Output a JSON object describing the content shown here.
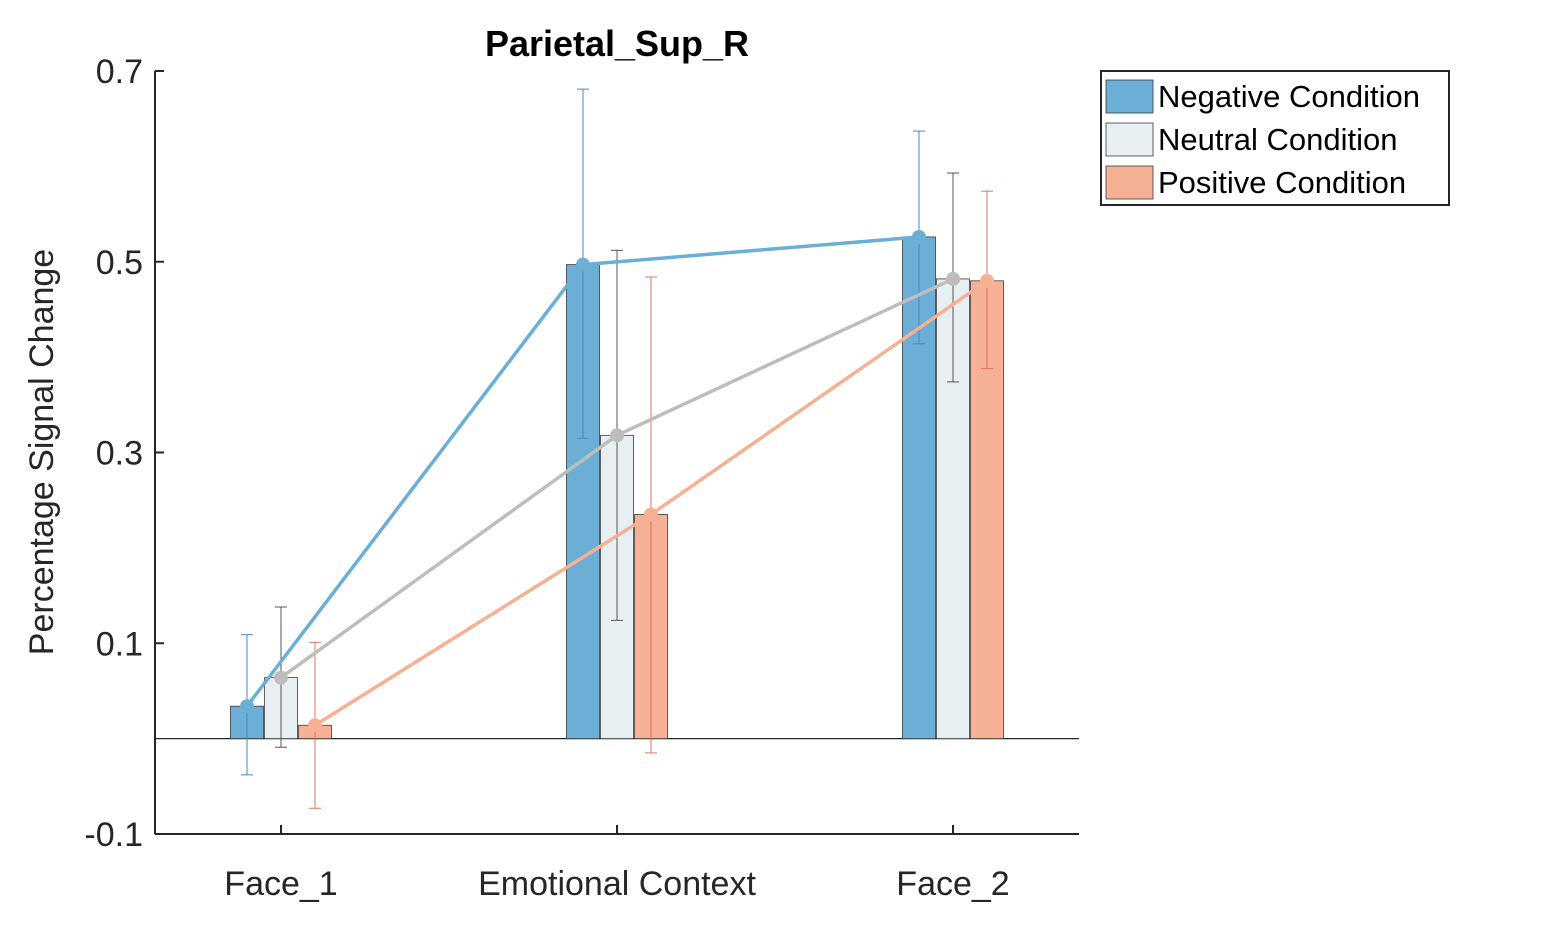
{
  "chart_data": {
    "type": "bar",
    "title": "Parietal_Sup_R",
    "xlabel": "",
    "ylabel": "Percentage Signal Change",
    "categories": [
      "Face_1",
      "Emotional Context",
      "Face_2"
    ],
    "ylim": [
      -0.1,
      0.7
    ],
    "yticks": [
      -0.1,
      0.1,
      0.3,
      0.5,
      0.7
    ],
    "ytick_labels": [
      "-0.1",
      "0.1",
      "0.3",
      "0.5",
      "0.7"
    ],
    "grid": false,
    "legend_position": "outside top-right",
    "overlay": "line connecting bar tops per series",
    "series": [
      {
        "name": "Negative Condition",
        "color": "#6baed6",
        "error_color": "#4a86c5",
        "values": [
          0.034,
          0.497,
          0.526
        ],
        "err_low": [
          -0.038,
          0.315,
          0.414
        ],
        "err_high": [
          0.109,
          0.681,
          0.637
        ]
      },
      {
        "name": "Neutral Condition",
        "color": "#e8eff2",
        "line_color": "#bdbdbd",
        "error_color": "#555555",
        "values": [
          0.064,
          0.318,
          0.482
        ],
        "err_low": [
          -0.009,
          0.124,
          0.374
        ],
        "err_high": [
          0.138,
          0.512,
          0.593
        ]
      },
      {
        "name": "Positive Condition",
        "color": "#f6b093",
        "error_color": "#e07060",
        "values": [
          0.014,
          0.235,
          0.48
        ],
        "err_low": [
          -0.073,
          -0.015,
          0.388
        ],
        "err_high": [
          0.101,
          0.484,
          0.574
        ]
      }
    ]
  }
}
